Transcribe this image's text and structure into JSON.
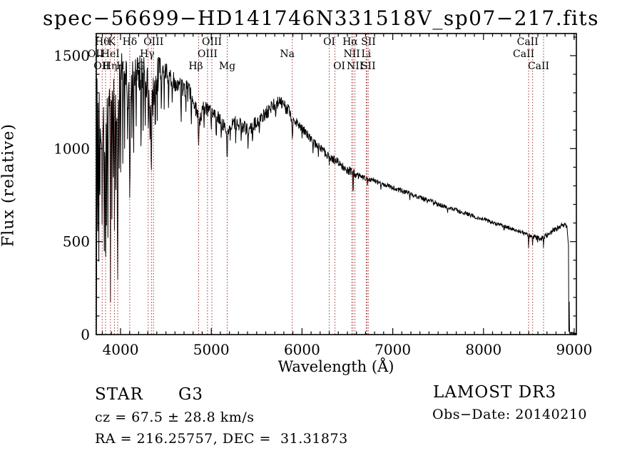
{
  "title": "spec−56699−HD141746N331518V_sp07−217.fits",
  "axes": {
    "xlabel": "Wavelength (Å)",
    "ylabel": "Flux (relative)",
    "x_major_ticks": [
      4000,
      5000,
      6000,
      7000,
      8000,
      9000
    ],
    "y_major_ticks": [
      0,
      500,
      1000,
      1500
    ],
    "x_minor_step": 100,
    "y_minor_step": 100,
    "xlim": [
      3733,
      9024
    ],
    "ylim": [
      0,
      1619
    ]
  },
  "annotations": {
    "class_label": "STAR",
    "subclass": "G3",
    "cz": "cz = 67.5 ± 28.8 km/s",
    "radec": "RA = 216.25757, DEC =  31.31873",
    "survey": "LAMOST DR3",
    "obs_date": "Obs−Date: 20140210"
  },
  "colors": {
    "spectrum": "#000000",
    "spectral_line_marker": "#a13030",
    "text": "#000000",
    "background": "#ffffff"
  },
  "chart_data": {
    "type": "line",
    "title": "spec−56699−HD141746N331518V_sp07−217.fits",
    "xlabel": "Wavelength (Å)",
    "ylabel": "Flux (relative)",
    "xlim": [
      3733,
      9024
    ],
    "ylim": [
      0,
      1619
    ],
    "grid": false,
    "sample_step": 4,
    "noise_seed": 20140210,
    "spectral_lines": [
      {
        "label": "OII",
        "wavelength": 3726.0,
        "row": 2
      },
      {
        "label": "OII",
        "wavelength": 3728.8,
        "row": 3,
        "dx": 8
      },
      {
        "label": "Hθ",
        "wavelength": 3797.9,
        "row": 1
      },
      {
        "label": "Hη",
        "wavelength": 3835.4,
        "row": 3,
        "dx": 6
      },
      {
        "label": "HeI",
        "wavelength": 3889.0,
        "row": 2
      },
      {
        "label": "K",
        "wavelength": 3933.7,
        "row": 1,
        "dx": -4
      },
      {
        "label": "H",
        "wavelength": 3968.5,
        "row": 3,
        "dx": 4
      },
      {
        "label": "Hδ",
        "wavelength": 4101.7,
        "row": 1
      },
      {
        "label": "G",
        "wavelength": 4304.4,
        "row": 3,
        "dx": -10
      },
      {
        "label": "Hγ",
        "wavelength": 4340.5,
        "row": 2,
        "dx": -6
      },
      {
        "label": "OIII",
        "wavelength": 4363.2,
        "row": 1
      },
      {
        "label": "Hβ",
        "wavelength": 4861.3,
        "row": 3,
        "dx": -4
      },
      {
        "label": "OIII",
        "wavelength": 4958.9,
        "row": 2
      },
      {
        "label": "OIII",
        "wavelength": 5006.8,
        "row": 1
      },
      {
        "label": "Mg",
        "wavelength": 5175.3,
        "row": 3
      },
      {
        "label": "Na",
        "wavelength": 5893.0,
        "row": 2,
        "dx": -7
      },
      {
        "label": "OI",
        "wavelength": 6300.3,
        "row": 1
      },
      {
        "label": "OI",
        "wavelength": 6363.8,
        "row": 3,
        "dx": 6
      },
      {
        "label": "NII",
        "wavelength": 6548.0,
        "row": 2
      },
      {
        "label": "Hα",
        "wavelength": 6562.8,
        "row": 1,
        "dx": -4
      },
      {
        "label": "NII",
        "wavelength": 6583.4,
        "row": 3
      },
      {
        "label": "Li",
        "wavelength": 6707.8,
        "row": 2
      },
      {
        "label": "SII",
        "wavelength": 6716.5,
        "row": 1,
        "dx": 2
      },
      {
        "label": "SII",
        "wavelength": 6730.9,
        "row": 3
      },
      {
        "label": "CaII",
        "wavelength": 8498.0,
        "row": 2,
        "dx": -7
      },
      {
        "label": "CaII",
        "wavelength": 8542.1,
        "row": 1,
        "dx": -7
      },
      {
        "label": "CaII",
        "wavelength": 8662.1,
        "row": 3,
        "dx": -7
      }
    ],
    "envelope": [
      [
        3733,
        20
      ],
      [
        3736,
        700
      ],
      [
        3741,
        1250
      ],
      [
        3755,
        1150
      ],
      [
        3775,
        1230
      ],
      [
        3798,
        1120
      ],
      [
        3815,
        1260
      ],
      [
        3835,
        1000
      ],
      [
        3852,
        1230
      ],
      [
        3870,
        1290
      ],
      [
        3890,
        1100
      ],
      [
        3910,
        1360
      ],
      [
        3934,
        1180
      ],
      [
        3950,
        1320
      ],
      [
        3968,
        1080
      ],
      [
        3990,
        1400
      ],
      [
        4020,
        1430
      ],
      [
        4060,
        1400
      ],
      [
        4102,
        1220
      ],
      [
        4140,
        1400
      ],
      [
        4180,
        1430
      ],
      [
        4230,
        1400
      ],
      [
        4280,
        1380
      ],
      [
        4305,
        1310
      ],
      [
        4340,
        1200
      ],
      [
        4380,
        1350
      ],
      [
        4420,
        1400
      ],
      [
        4470,
        1410
      ],
      [
        4530,
        1400
      ],
      [
        4600,
        1360
      ],
      [
        4680,
        1330
      ],
      [
        4760,
        1300
      ],
      [
        4820,
        1260
      ],
      [
        4861,
        1120
      ],
      [
        4900,
        1230
      ],
      [
        4960,
        1210
      ],
      [
        5020,
        1190
      ],
      [
        5080,
        1170
      ],
      [
        5140,
        1130
      ],
      [
        5175,
        1090
      ],
      [
        5220,
        1140
      ],
      [
        5280,
        1140
      ],
      [
        5340,
        1120
      ],
      [
        5400,
        1100
      ],
      [
        5460,
        1120
      ],
      [
        5520,
        1150
      ],
      [
        5580,
        1180
      ],
      [
        5640,
        1210
      ],
      [
        5700,
        1240
      ],
      [
        5760,
        1245
      ],
      [
        5810,
        1230
      ],
      [
        5860,
        1190
      ],
      [
        5894,
        1150
      ],
      [
        5940,
        1140
      ],
      [
        6000,
        1110
      ],
      [
        6060,
        1075
      ],
      [
        6120,
        1040
      ],
      [
        6180,
        1010
      ],
      [
        6240,
        985
      ],
      [
        6300,
        958
      ],
      [
        6360,
        938
      ],
      [
        6420,
        916
      ],
      [
        6480,
        896
      ],
      [
        6540,
        875
      ],
      [
        6600,
        860
      ],
      [
        6660,
        850
      ],
      [
        6760,
        833
      ],
      [
        6860,
        815
      ],
      [
        6960,
        798
      ],
      [
        7060,
        780
      ],
      [
        7160,
        762
      ],
      [
        7260,
        744
      ],
      [
        7360,
        726
      ],
      [
        7460,
        708
      ],
      [
        7560,
        692
      ],
      [
        7660,
        676
      ],
      [
        7760,
        658
      ],
      [
        7860,
        642
      ],
      [
        7960,
        626
      ],
      [
        8060,
        610
      ],
      [
        8160,
        594
      ],
      [
        8260,
        578
      ],
      [
        8360,
        562
      ],
      [
        8460,
        545
      ],
      [
        8520,
        530
      ],
      [
        8580,
        522
      ],
      [
        8640,
        518
      ],
      [
        8700,
        532
      ],
      [
        8760,
        556
      ],
      [
        8820,
        572
      ],
      [
        8865,
        585
      ],
      [
        8900,
        596
      ],
      [
        8918,
        575
      ],
      [
        8930,
        530
      ],
      [
        8937,
        480
      ],
      [
        8941,
        15
      ],
      [
        8945,
        180
      ],
      [
        8948,
        10
      ],
      [
        8960,
        8
      ],
      [
        9024,
        6
      ]
    ],
    "absorption_spikes": [
      [
        3737,
        350,
        4
      ],
      [
        3748,
        480,
        4
      ],
      [
        3760,
        300,
        4
      ],
      [
        3771,
        560,
        4
      ],
      [
        3798,
        540,
        5
      ],
      [
        3820,
        360,
        4
      ],
      [
        3835,
        240,
        5
      ],
      [
        3846,
        520,
        4
      ],
      [
        3860,
        420,
        4
      ],
      [
        3889,
        175,
        5
      ],
      [
        3905,
        620,
        4
      ],
      [
        3920,
        800,
        4
      ],
      [
        3934,
        520,
        5
      ],
      [
        3950,
        720,
        4
      ],
      [
        3968,
        250,
        6
      ],
      [
        3984,
        850,
        4
      ],
      [
        4000,
        810,
        4
      ],
      [
        4026,
        870,
        4
      ],
      [
        4045,
        1000,
        4
      ],
      [
        4077,
        1050,
        4
      ],
      [
        4102,
        700,
        6
      ],
      [
        4126,
        1020,
        4
      ],
      [
        4144,
        930,
        4
      ],
      [
        4172,
        1080,
        4
      ],
      [
        4226,
        980,
        5
      ],
      [
        4250,
        1060,
        4
      ],
      [
        4272,
        1100,
        4
      ],
      [
        4305,
        1110,
        6
      ],
      [
        4325,
        1050,
        4
      ],
      [
        4340,
        865,
        6
      ],
      [
        4383,
        1060,
        5
      ],
      [
        4405,
        1150,
        4
      ],
      [
        4450,
        1180,
        4
      ],
      [
        4481,
        1210,
        4
      ],
      [
        4530,
        1200,
        4
      ],
      [
        4570,
        1230,
        4
      ],
      [
        4668,
        1130,
        5
      ],
      [
        4720,
        1180,
        4
      ],
      [
        4780,
        1120,
        5
      ],
      [
        4861,
        1015,
        6
      ],
      [
        4890,
        1140,
        4
      ],
      [
        4920,
        1100,
        4
      ],
      [
        5000,
        1090,
        4
      ],
      [
        5055,
        1040,
        5
      ],
      [
        5110,
        1050,
        4
      ],
      [
        5175,
        935,
        7
      ],
      [
        5210,
        1030,
        4
      ],
      [
        5270,
        1020,
        4
      ],
      [
        5330,
        1030,
        4
      ],
      [
        5405,
        1000,
        5
      ],
      [
        5455,
        1010,
        4
      ],
      [
        5530,
        1080,
        4
      ],
      [
        5711,
        1150,
        4
      ],
      [
        5894,
        1045,
        6
      ],
      [
        6000,
        1050,
        4
      ],
      [
        6122,
        965,
        4
      ],
      [
        6180,
        950,
        4
      ],
      [
        6300,
        905,
        4
      ],
      [
        6495,
        850,
        4
      ],
      [
        6563,
        752,
        5
      ],
      [
        6623,
        820,
        3
      ],
      [
        6720,
        795,
        3
      ],
      [
        6869,
        780,
        3
      ],
      [
        7190,
        715,
        3
      ],
      [
        7605,
        655,
        3
      ],
      [
        8227,
        550,
        3
      ],
      [
        8498,
        458,
        4
      ],
      [
        8542,
        472,
        4
      ],
      [
        8598,
        490,
        3
      ],
      [
        8662,
        462,
        4
      ]
    ],
    "noise_regions": [
      [
        3733,
        3960,
        150
      ],
      [
        3960,
        4450,
        105
      ],
      [
        4450,
        4900,
        55
      ],
      [
        4900,
        5900,
        38
      ],
      [
        5900,
        6600,
        24
      ],
      [
        6600,
        7500,
        14
      ],
      [
        7500,
        8500,
        11
      ],
      [
        8500,
        8940,
        15
      ],
      [
        8940,
        9024,
        5
      ]
    ]
  }
}
